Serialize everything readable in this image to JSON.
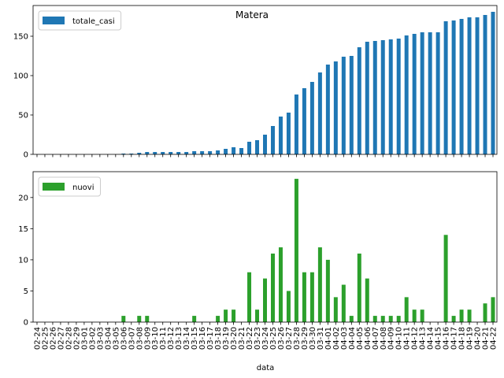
{
  "chart_data": {
    "type": "bar",
    "title": "Matera",
    "xlabel": "data",
    "categories": [
      "02-24",
      "02-25",
      "02-26",
      "02-27",
      "02-28",
      "02-29",
      "03-01",
      "03-02",
      "03-03",
      "03-04",
      "03-05",
      "03-06",
      "03-07",
      "03-08",
      "03-09",
      "03-10",
      "03-11",
      "03-12",
      "03-13",
      "03-14",
      "03-15",
      "03-16",
      "03-17",
      "03-18",
      "03-19",
      "03-20",
      "03-21",
      "03-22",
      "03-23",
      "03-24",
      "03-25",
      "03-26",
      "03-27",
      "03-28",
      "03-29",
      "03-30",
      "03-31",
      "04-01",
      "04-02",
      "04-03",
      "04-04",
      "04-05",
      "04-06",
      "04-07",
      "04-08",
      "04-09",
      "04-10",
      "04-11",
      "04-12",
      "04-13",
      "04-14",
      "04-15",
      "04-16",
      "04-17",
      "04-18",
      "04-19",
      "04-20",
      "04-21",
      "04-22"
    ],
    "panels": [
      {
        "series": [
          {
            "name": "totale_casi",
            "color": "#1f77b4",
            "values": [
              0,
              0,
              0,
              0,
              0,
              0,
              0,
              0,
              0,
              0,
              0,
              1,
              1,
              2,
              3,
              3,
              3,
              3,
              3,
              3,
              4,
              4,
              4,
              5,
              7,
              9,
              8,
              16,
              18,
              25,
              36,
              48,
              53,
              76,
              84,
              92,
              104,
              114,
              118,
              124,
              125,
              136,
              143,
              144,
              145,
              146,
              147,
              151,
              153,
              155,
              155,
              155,
              169,
              170,
              172,
              174,
              174,
              177,
              181
            ]
          }
        ],
        "ylim": [
          0,
          189
        ],
        "yticks": [
          0,
          50,
          100,
          150
        ],
        "legend": "top-left"
      },
      {
        "series": [
          {
            "name": "nuovi",
            "color": "#2ca02c",
            "values": [
              0,
              0,
              0,
              0,
              0,
              0,
              0,
              0,
              0,
              0,
              0,
              1,
              0,
              1,
              1,
              0,
              0,
              0,
              0,
              0,
              1,
              0,
              0,
              1,
              2,
              2,
              0,
              8,
              2,
              7,
              11,
              12,
              5,
              23,
              8,
              8,
              12,
              10,
              4,
              6,
              1,
              11,
              7,
              1,
              1,
              1,
              1,
              4,
              2,
              2,
              0,
              0,
              14,
              1,
              2,
              2,
              0,
              3,
              4
            ]
          }
        ],
        "ylim": [
          0,
          24.15
        ],
        "yticks": [
          0,
          5,
          10,
          15,
          20
        ],
        "legend": "top-left"
      }
    ]
  }
}
